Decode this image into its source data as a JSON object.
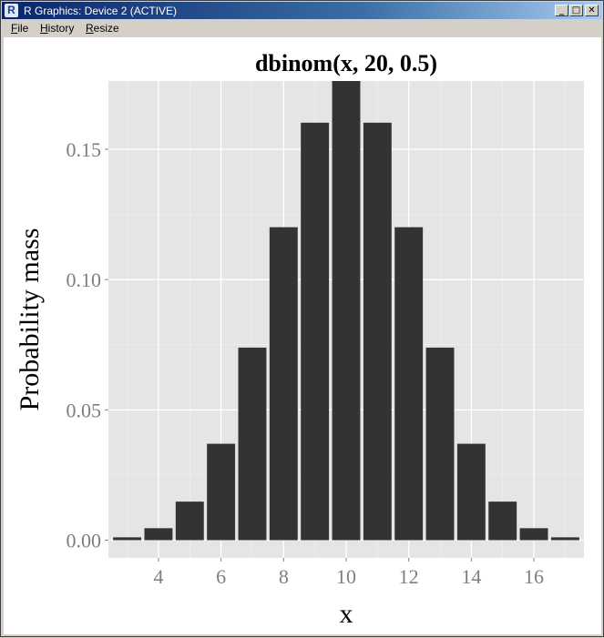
{
  "window": {
    "title": "R Graphics: Device 2 (ACTIVE)",
    "app_icon": "R",
    "controls": {
      "minimize": "_",
      "maximize": "□",
      "close": "✕"
    }
  },
  "menu": [
    {
      "label": "File"
    },
    {
      "label": "History"
    },
    {
      "label": "Resize"
    }
  ],
  "colors": {
    "panel": "#e5e5e5",
    "bar": "#333333",
    "axis_text": "#7f7f7f",
    "title": "#000000"
  },
  "chart_data": {
    "type": "bar",
    "title": "dbinom(x, 20, 0.5)",
    "xlabel": "x",
    "ylabel": "Probability mass",
    "x": [
      3,
      4,
      5,
      6,
      7,
      8,
      9,
      10,
      11,
      12,
      13,
      14,
      15,
      16,
      17
    ],
    "values": [
      0.0011,
      0.0046,
      0.0148,
      0.037,
      0.0739,
      0.1201,
      0.1602,
      0.1762,
      0.1602,
      0.1201,
      0.0739,
      0.037,
      0.0148,
      0.0046,
      0.0011
    ],
    "xlim": [
      2.4,
      17.6
    ],
    "ylim": [
      -0.0068,
      0.1762
    ],
    "xticks": [
      4,
      6,
      8,
      10,
      12,
      14,
      16
    ],
    "xtick_labels": [
      "4",
      "6",
      "8",
      "10",
      "12",
      "14",
      "16"
    ],
    "yticks": [
      0.0,
      0.05,
      0.1,
      0.15
    ],
    "ytick_labels": [
      "0.00",
      "0.05",
      "0.10",
      "0.15"
    ],
    "grid": true,
    "legend": "none"
  }
}
